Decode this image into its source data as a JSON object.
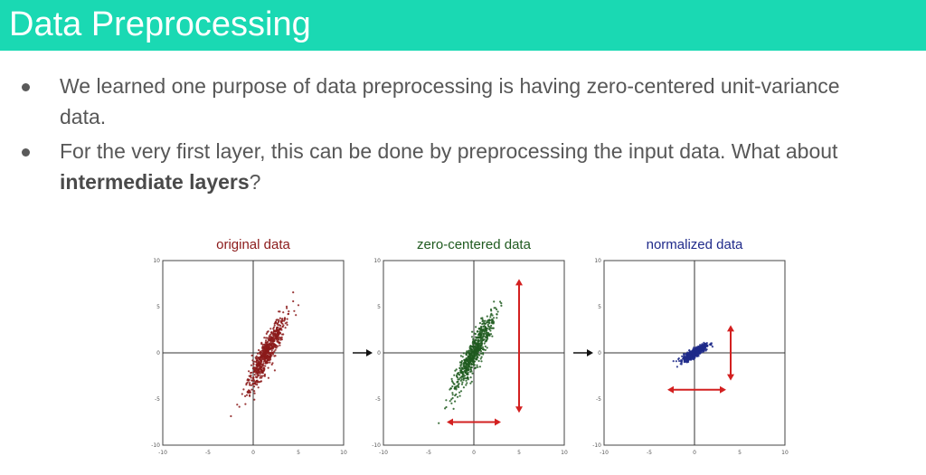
{
  "slide": {
    "title": "Data Preprocessing",
    "bullets": [
      {
        "text": "We learned one purpose of data preprocessing is having zero-centered unit-variance data."
      },
      {
        "text_before": "For the very first layer, this can be done by preprocessing the input data. What about ",
        "bold": "intermediate layers",
        "text_after": "?"
      }
    ]
  },
  "colors": {
    "title_bar": "#1ad9b3",
    "original": "#8b1a1a",
    "zero_centered": "#1f5a1f",
    "normalized": "#1f2a8a",
    "arrow_red": "#d32020"
  },
  "chart_data": [
    {
      "type": "scatter",
      "title": "original data",
      "xlim": [
        -10,
        10
      ],
      "ylim": [
        -10,
        10
      ],
      "xticks": [
        "-10",
        "-5",
        "0",
        "5",
        "10"
      ],
      "yticks": [
        "10",
        "5",
        "0",
        "-5",
        "-10"
      ],
      "center": [
        1.5,
        0
      ],
      "spread_along": 5.0,
      "spread_across": 0.9,
      "slope": 2.0,
      "color": "#8b1a1a",
      "range_arrows": false
    },
    {
      "type": "scatter",
      "title": "zero-centered data",
      "xlim": [
        -10,
        10
      ],
      "ylim": [
        -10,
        10
      ],
      "xticks": [
        "-10",
        "-5",
        "0",
        "5",
        "10"
      ],
      "yticks": [
        "10",
        "5",
        "0",
        "-5",
        "-10"
      ],
      "center": [
        0,
        0
      ],
      "spread_along": 5.0,
      "spread_across": 0.9,
      "slope": 2.0,
      "color": "#1f5a1f",
      "range_arrows": true,
      "arrow_x": [
        -3.0,
        3.0
      ],
      "arrow_x_at_y": -7.5,
      "arrow_y": [
        -6.5,
        8.0
      ],
      "arrow_y_at_x": 5.0
    },
    {
      "type": "scatter",
      "title": "normalized data",
      "xlim": [
        -10,
        10
      ],
      "ylim": [
        -10,
        10
      ],
      "xticks": [
        "-10",
        "-5",
        "0",
        "5",
        "10"
      ],
      "yticks": [
        "10",
        "5",
        "0",
        "-5",
        "-10"
      ],
      "center": [
        0,
        0
      ],
      "spread_along": 1.6,
      "spread_across": 0.45,
      "slope": 0.6,
      "color": "#1f2a8a",
      "range_arrows": true,
      "arrow_x": [
        -3.0,
        3.5
      ],
      "arrow_x_at_y": -4.0,
      "arrow_y": [
        -3.0,
        3.0
      ],
      "arrow_y_at_x": 4.0
    }
  ]
}
